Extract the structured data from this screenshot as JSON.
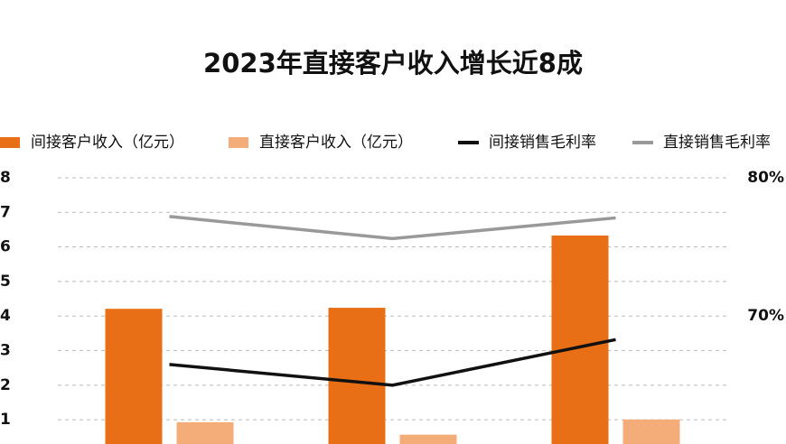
{
  "chart_data": {
    "type": "bar",
    "title": "2023年直接客户收入增长近8成",
    "categories": [
      null,
      null,
      null
    ],
    "series": [
      {
        "name": "间接客户收入（亿元）",
        "type": "bar",
        "color": "#e86f15",
        "values": [
          4.21,
          4.24,
          6.33
        ]
      },
      {
        "name": "直接客户收入（亿元）",
        "type": "bar",
        "color": "#f4ad78",
        "values": [
          0.93,
          0.57,
          1.01
        ]
      },
      {
        "name": "间接销售毛利率",
        "type": "line",
        "axis": "y2",
        "color": "#111111",
        "values": [
          66.5,
          65.0,
          68.3
        ]
      },
      {
        "name": "直接销售毛利率",
        "type": "line",
        "axis": "y2",
        "color": "#999999",
        "values": [
          77.2,
          75.6,
          77.1
        ]
      }
    ],
    "ylim": [
      0.3,
      8
    ],
    "yticks": [
      1,
      2,
      3,
      4,
      5,
      6,
      7,
      8
    ],
    "y2lim": [
      60.75,
      80
    ],
    "y2ticks": [
      {
        "value": 70,
        "label": "70%"
      },
      {
        "value": 80,
        "label": "80%"
      }
    ],
    "grid": true
  }
}
